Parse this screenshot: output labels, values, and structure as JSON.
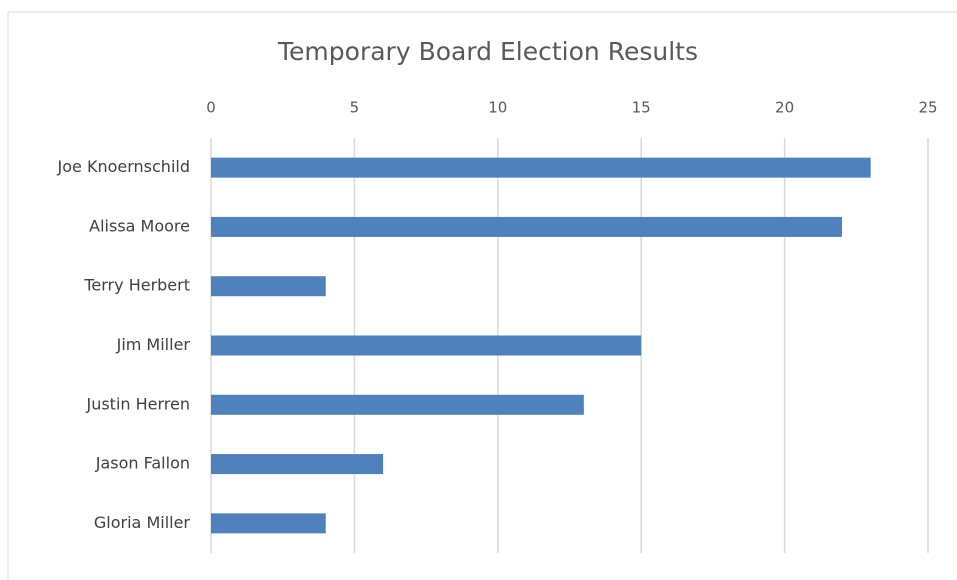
{
  "chart_data": {
    "type": "bar",
    "orientation": "horizontal",
    "title": "Temporary Board Election Results",
    "categories": [
      "Joe Knoernschild",
      "Alissa Moore",
      "Terry Herbert",
      "Jim Miller",
      "Justin Herren",
      "Jason Fallon",
      "Gloria Miller"
    ],
    "values": [
      23,
      22,
      4,
      15,
      13,
      6,
      4
    ],
    "color": "#4f81bd",
    "xlim": [
      0,
      25
    ],
    "xticks": [
      0,
      5,
      10,
      15,
      20,
      25
    ],
    "grid": true
  }
}
